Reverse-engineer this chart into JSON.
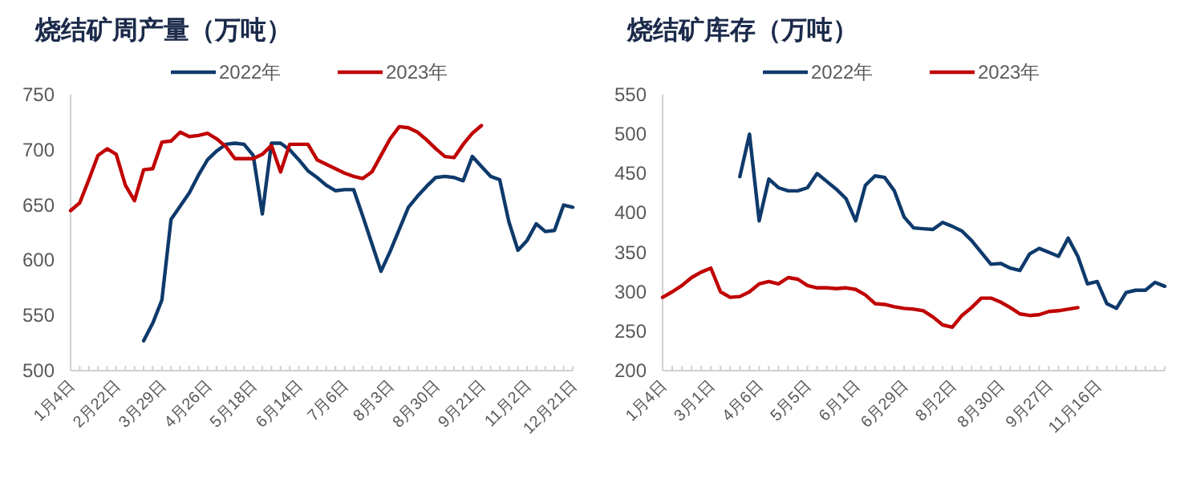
{
  "chart_data": [
    {
      "type": "line",
      "title": "烧结矿周产量（万吨）",
      "legend": "top",
      "grid": false,
      "ylim": [
        500,
        750
      ],
      "yticks": [
        500,
        550,
        600,
        650,
        700,
        750
      ],
      "categories": [
        "1月4日",
        null,
        null,
        null,
        null,
        "2月22日",
        null,
        null,
        null,
        null,
        "3月29日",
        null,
        null,
        null,
        null,
        "4月26日",
        null,
        null,
        null,
        null,
        "5月18日",
        null,
        null,
        null,
        null,
        "6月14日",
        null,
        null,
        null,
        null,
        "7月6日",
        null,
        null,
        null,
        null,
        "8月3日",
        null,
        null,
        null,
        null,
        "8月30日",
        null,
        null,
        null,
        null,
        "9月21日",
        null,
        null,
        null,
        null,
        "11月2日",
        null,
        null,
        null,
        null,
        "12月21日"
      ],
      "series": [
        {
          "name": "2022年",
          "color": "#0e3a6b",
          "values": [
            null,
            null,
            null,
            null,
            null,
            null,
            null,
            null,
            527,
            543,
            564,
            637,
            649,
            661,
            677,
            691,
            699,
            705,
            706,
            705,
            695,
            642,
            706,
            706,
            700,
            691,
            681,
            675,
            668,
            663,
            664,
            664,
            640,
            615,
            590,
            608,
            628,
            648,
            658,
            667,
            675,
            676,
            675,
            672,
            694,
            685,
            676,
            673,
            635,
            609,
            618,
            633,
            626,
            627,
            650,
            648
          ]
        },
        {
          "name": "2023年",
          "color": "#c00000",
          "values": [
            645,
            652,
            673,
            695,
            701,
            696,
            668,
            654,
            682,
            683,
            707,
            708,
            716,
            712,
            713,
            715,
            710,
            703,
            692,
            692,
            692,
            696,
            704,
            680,
            705,
            705,
            705,
            691,
            687,
            683,
            679,
            676,
            674,
            680,
            695,
            710,
            721,
            720,
            716,
            709,
            701,
            694,
            693,
            705,
            715,
            722,
            null,
            null,
            null,
            null,
            null,
            null,
            null,
            null,
            null,
            null
          ]
        }
      ]
    },
    {
      "type": "line",
      "title": "烧结矿库存（万吨）",
      "legend": "top",
      "grid": false,
      "ylim": [
        200,
        550
      ],
      "yticks": [
        200,
        250,
        300,
        350,
        400,
        450,
        500,
        550
      ],
      "categories": [
        "1月4日",
        null,
        null,
        null,
        null,
        "3月1日",
        null,
        null,
        null,
        null,
        "4月6日",
        null,
        null,
        null,
        null,
        "5月5日",
        null,
        null,
        null,
        null,
        "6月1日",
        null,
        null,
        null,
        null,
        "6月29日",
        null,
        null,
        null,
        null,
        "8月2日",
        null,
        null,
        null,
        null,
        "8月30日",
        null,
        null,
        null,
        null,
        "9月27日",
        null,
        null,
        null,
        null,
        "11月16日",
        null,
        null,
        null,
        null,
        null,
        null,
        null
      ],
      "series": [
        {
          "name": "2022年",
          "color": "#0e3a6b",
          "values": [
            null,
            null,
            null,
            null,
            null,
            null,
            null,
            null,
            446,
            500,
            390,
            443,
            432,
            428,
            428,
            432,
            450,
            440,
            430,
            418,
            390,
            435,
            447,
            445,
            428,
            395,
            381,
            380,
            379,
            388,
            383,
            377,
            365,
            350,
            335,
            336,
            330,
            327,
            348,
            355,
            350,
            345,
            368,
            345,
            310,
            313,
            285,
            279,
            299,
            302,
            302,
            312,
            307
          ]
        },
        {
          "name": "2023年",
          "color": "#c00000",
          "values": [
            293,
            300,
            308,
            318,
            325,
            330,
            300,
            293,
            294,
            300,
            310,
            313,
            310,
            318,
            316,
            308,
            305,
            305,
            304,
            305,
            303,
            296,
            285,
            284,
            281,
            279,
            278,
            276,
            268,
            258,
            255,
            270,
            280,
            292,
            292,
            287,
            280,
            272,
            270,
            271,
            275,
            276,
            278,
            280,
            null,
            null,
            null,
            null,
            null,
            null,
            null,
            null,
            null
          ]
        }
      ]
    }
  ]
}
